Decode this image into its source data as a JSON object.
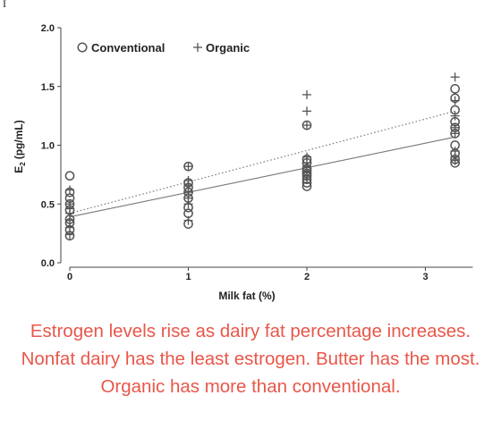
{
  "stray_mark": "I",
  "caption": "Estrogen levels rise as dairy fat percentage increases. Nonfat dairy has the least estrogen. Butter has the most. Organic has more than conventional.",
  "colors": {
    "caption": "#e8574a",
    "marker": "#555555",
    "conventional_line": "#777777",
    "organic_line": "#777777"
  },
  "chart_data": {
    "type": "scatter",
    "title": "",
    "xlabel": "Milk fat (%)",
    "ylabel": "E2 (pg/mL)",
    "ylabel_main": "E",
    "ylabel_sub": "2",
    "ylabel_unit": "(pg/mL)",
    "xlim": [
      0,
      3.4
    ],
    "ylim": [
      0,
      2.0
    ],
    "x_ticks": [
      0,
      1,
      2,
      3
    ],
    "y_ticks": [
      0.0,
      0.5,
      1.0,
      1.5,
      2.0
    ],
    "y_tick_labels": [
      "0.0",
      "0.5",
      "1.0",
      "1.5",
      "2.0"
    ],
    "grid": false,
    "legend_position": "top",
    "series": [
      {
        "name": "Conventional",
        "marker": "circle",
        "x": [
          0,
          0,
          0,
          0,
          0,
          0,
          0,
          0,
          0,
          1,
          1,
          1,
          1,
          1,
          1,
          1,
          1,
          2,
          2,
          2,
          2,
          2,
          2,
          2,
          2,
          2,
          2,
          3.25,
          3.25,
          3.25,
          3.25,
          3.25,
          3.25,
          3.25,
          3.25,
          3.25,
          3.25
        ],
        "y": [
          0.74,
          0.6,
          0.55,
          0.5,
          0.45,
          0.37,
          0.34,
          0.28,
          0.23,
          0.82,
          0.68,
          0.64,
          0.6,
          0.55,
          0.47,
          0.42,
          0.33,
          1.17,
          0.88,
          0.85,
          0.8,
          0.78,
          0.76,
          0.74,
          0.71,
          0.68,
          0.65,
          1.48,
          1.4,
          1.3,
          1.2,
          1.15,
          1.1,
          1.0,
          0.93,
          0.88,
          0.85
        ]
      },
      {
        "name": "Organic",
        "marker": "plus",
        "x": [
          0,
          0,
          0,
          0,
          0,
          0,
          0,
          1,
          1,
          1,
          1,
          1,
          1,
          1,
          2,
          2,
          2,
          2,
          2,
          2,
          2,
          2,
          3.25,
          3.25,
          3.25,
          3.25,
          3.25,
          3.25,
          3.25,
          3.25
        ],
        "y": [
          0.62,
          0.5,
          0.46,
          0.42,
          0.36,
          0.3,
          0.24,
          0.82,
          0.7,
          0.66,
          0.6,
          0.55,
          0.5,
          0.36,
          1.43,
          1.29,
          1.17,
          0.9,
          0.85,
          0.82,
          0.78,
          0.73,
          1.58,
          1.38,
          1.25,
          1.15,
          1.1,
          0.95,
          0.9,
          0.87
        ]
      }
    ],
    "trendlines": [
      {
        "name": "Conventional",
        "style": "solid",
        "x": [
          0,
          3.25
        ],
        "y": [
          0.39,
          1.07
        ]
      },
      {
        "name": "Organic",
        "style": "dotted",
        "x": [
          0,
          3.25
        ],
        "y": [
          0.42,
          1.29
        ]
      }
    ]
  }
}
